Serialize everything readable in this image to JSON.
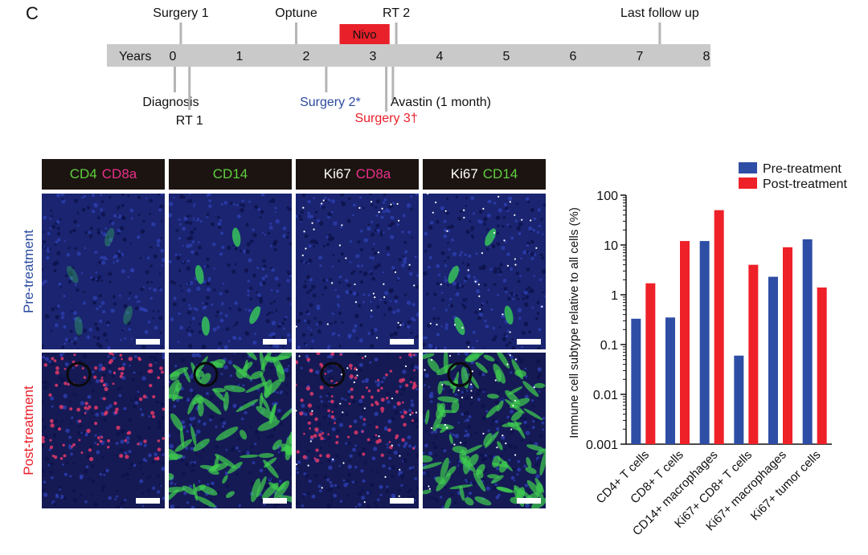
{
  "panel_label": "C",
  "timeline": {
    "axis_label": "Years",
    "years": [
      "0",
      "1",
      "2",
      "3",
      "4",
      "5",
      "6",
      "7",
      "8"
    ],
    "range": [
      0,
      8
    ],
    "nivo": {
      "label": "Nivo",
      "start": 2.5,
      "end": 3.25,
      "color": "#e8202a"
    },
    "events_above": [
      {
        "label": "Surgery 1",
        "year": 0.12,
        "color": "#111111"
      },
      {
        "label": "Optune",
        "year": 1.85,
        "color": "#111111"
      },
      {
        "label": "RT 2",
        "year": 3.35,
        "color": "#111111"
      },
      {
        "label": "Last follow up",
        "year": 7.3,
        "color": "#111111"
      }
    ],
    "events_below": [
      {
        "label": "Diagnosis",
        "year": 0.03,
        "color": "#111111"
      },
      {
        "label": "RT 1",
        "year": 0.25,
        "color": "#111111"
      },
      {
        "label": "Surgery 2*",
        "year": 2.3,
        "color": "#2b4aa0"
      },
      {
        "label": "Surgery 3†",
        "year": 3.2,
        "color": "#e8202a"
      },
      {
        "label": "Avastin (1 month)",
        "year": 3.3,
        "color": "#111111"
      }
    ]
  },
  "micrographs": {
    "columns": [
      {
        "parts": [
          {
            "text": "CD4",
            "color": "#5ecf3e"
          },
          {
            "text": "CD8a",
            "color": "#e8308a"
          }
        ]
      },
      {
        "parts": [
          {
            "text": "CD14",
            "color": "#5ecf3e"
          }
        ]
      },
      {
        "parts": [
          {
            "text": "Ki67",
            "color": "#ffffff"
          },
          {
            "text": "CD8a",
            "color": "#e8308a"
          }
        ]
      },
      {
        "parts": [
          {
            "text": "Ki67",
            "color": "#ffffff"
          },
          {
            "text": "CD14",
            "color": "#5ecf3e"
          }
        ]
      }
    ],
    "rows": [
      {
        "label": "Pre-treatment",
        "color": "#2b4aa0"
      },
      {
        "label": "Post-treatment",
        "color": "#e8202a"
      }
    ]
  },
  "chart_data": {
    "type": "bar",
    "categories": [
      "CD4+ T cells",
      "CD8+ T cells",
      "CD14+ macrophages",
      "Ki67+ CD8+ T cells",
      "Ki67+ macrophages",
      "Ki67+ tumor cells"
    ],
    "series": [
      {
        "name": "Pre-treatment",
        "color": "#2e4ea6",
        "values": [
          0.33,
          0.35,
          12,
          0.06,
          2.3,
          13
        ]
      },
      {
        "name": "Post-treatment",
        "color": "#ee2128",
        "values": [
          1.7,
          12,
          50,
          4,
          9,
          1.4
        ]
      }
    ],
    "ylabel": "Immune cell subtype relative to all cells (%)",
    "yscale": "log",
    "ylim": [
      0.001,
      100
    ],
    "yticks": [
      {
        "value": 0.001,
        "label": "0.001"
      },
      {
        "value": 0.01,
        "label": "0.01"
      },
      {
        "value": 0.1,
        "label": "0.1"
      },
      {
        "value": 1,
        "label": "1"
      },
      {
        "value": 10,
        "label": "10"
      },
      {
        "value": 100,
        "label": "100"
      }
    ],
    "legend_position": "top-right"
  }
}
